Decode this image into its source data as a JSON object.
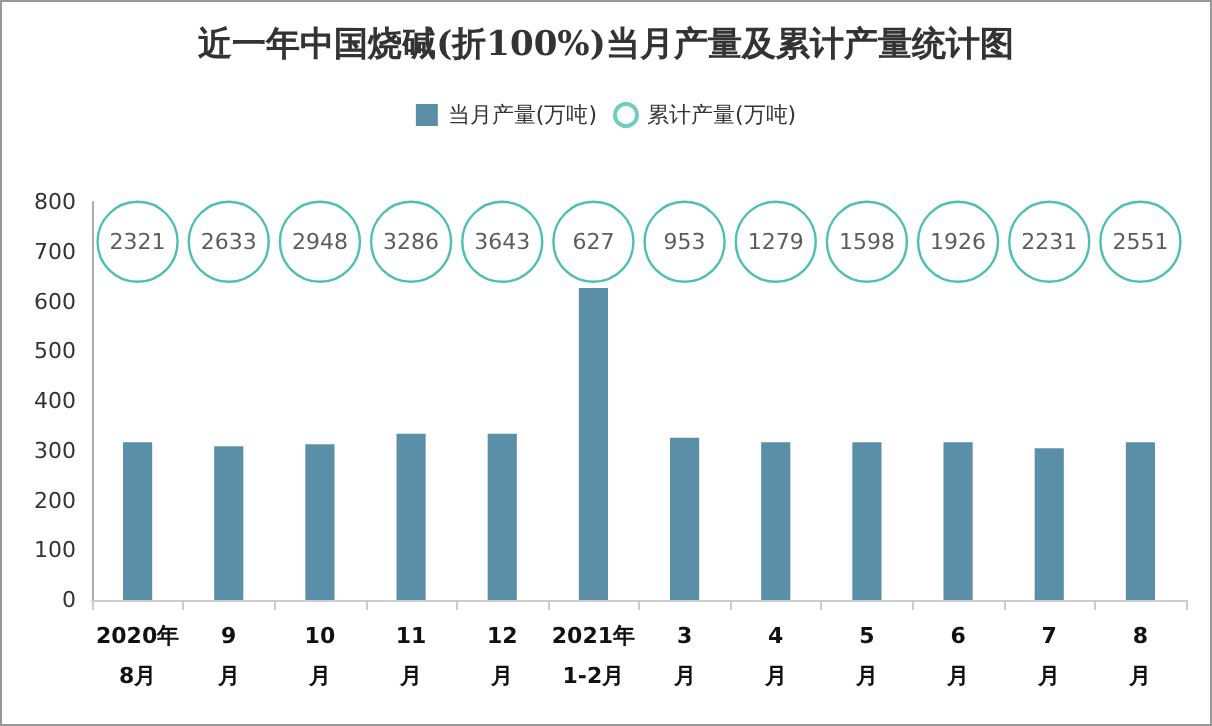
{
  "chart_data": {
    "type": "bar",
    "title": "近一年中国烧碱(折100%)当月产量及累计产量统计图",
    "categories": [
      "2020年\n8月",
      "9\n月",
      "10\n月",
      "11\n月",
      "12\n月",
      "2021年\n1-2月",
      "3\n月",
      "4\n月",
      "5\n月",
      "6\n月",
      "7\n月",
      "8\n月"
    ],
    "series": [
      {
        "name": "当月产量(万吨)",
        "color": "#5b8fa8",
        "values": [
          317,
          309,
          313,
          334,
          334,
          627,
          326,
          317,
          317,
          317,
          305,
          317
        ]
      },
      {
        "name": "累计产量(万吨)",
        "type": "scatter",
        "color": "#4dbfb3",
        "values": [
          null,
          null,
          null,
          null,
          null,
          null,
          null,
          null,
          null,
          null,
          null,
          null
        ],
        "value_labels": [
          "2321",
          "2633",
          "2948",
          "3286",
          "3643",
          "627",
          "953",
          "1279",
          "1598",
          "1926",
          "2231",
          "2551"
        ]
      }
    ],
    "ylim": [
      0,
      800
    ],
    "yticks": [
      0,
      100,
      200,
      300,
      400,
      500,
      600,
      700,
      800
    ],
    "grid": false,
    "legend": "top"
  }
}
